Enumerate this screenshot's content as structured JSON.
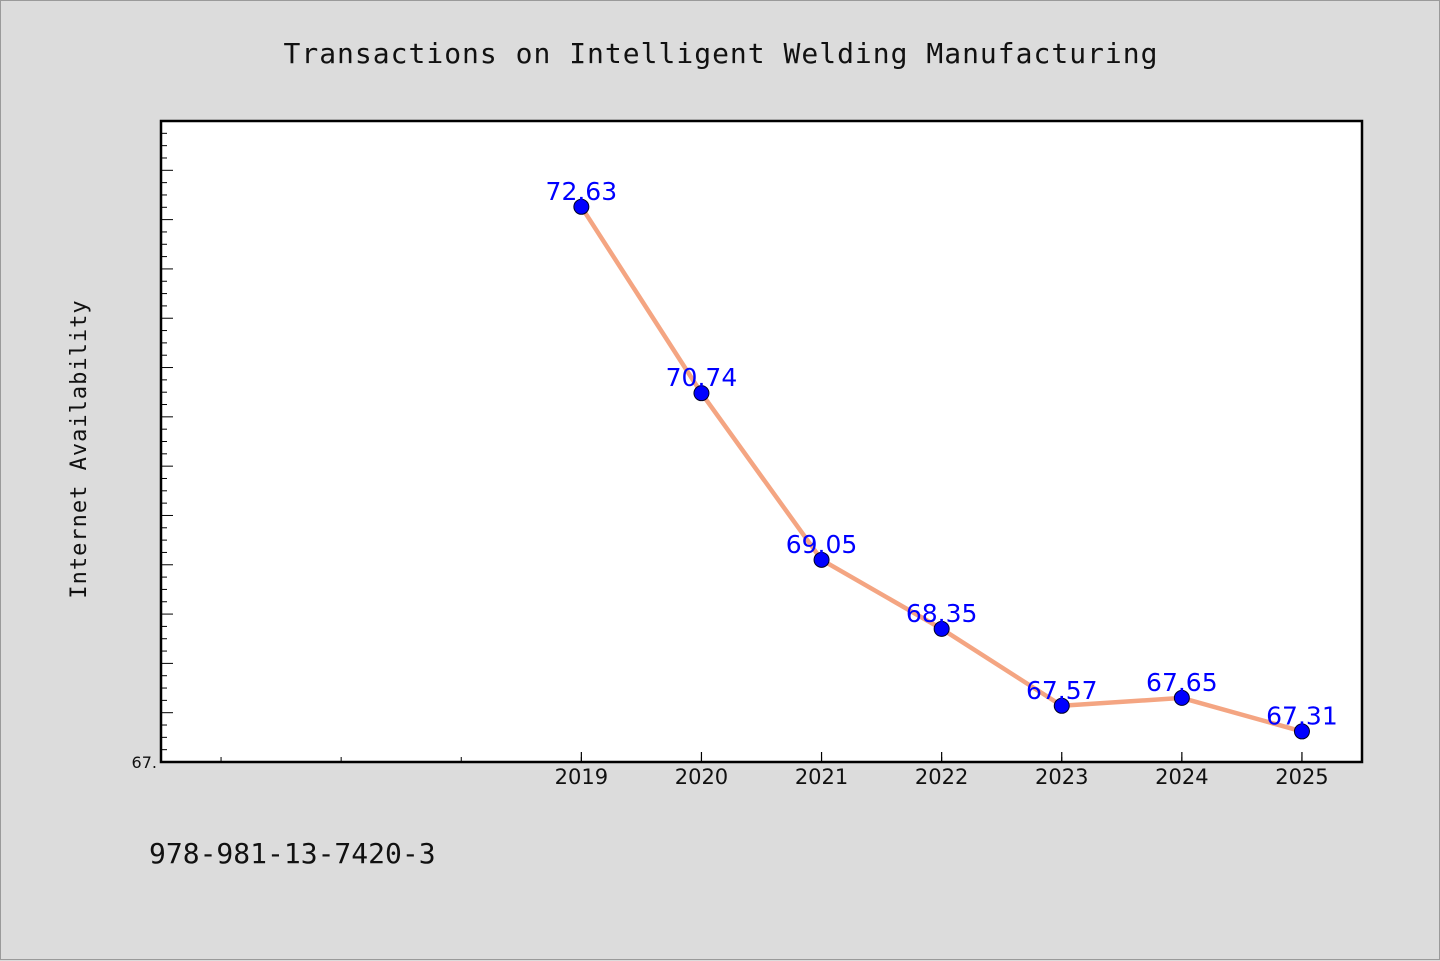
{
  "chart_data": {
    "type": "line",
    "title": "Transactions on Intelligent Welding Manufacturing",
    "xlabel": "",
    "ylabel": "Internet Availability",
    "x": [
      "2019",
      "2020",
      "2021",
      "2022",
      "2023",
      "2024",
      "2025"
    ],
    "series": [
      {
        "values": [
          72.63,
          70.74,
          69.05,
          68.35,
          67.57,
          67.65,
          67.31
        ],
        "labels": [
          "72.63",
          "70.74",
          "69.05",
          "68.35",
          "67.57",
          "67.65",
          "67.31"
        ],
        "line_color": "#f4a582",
        "marker_color": "#0000ff"
      }
    ],
    "ylim": [
      67.0,
      73.5
    ],
    "y_tick_label": "67.",
    "grid": false,
    "legend": "none"
  },
  "footer": {
    "isbn": "978-981-13-7420-3"
  }
}
